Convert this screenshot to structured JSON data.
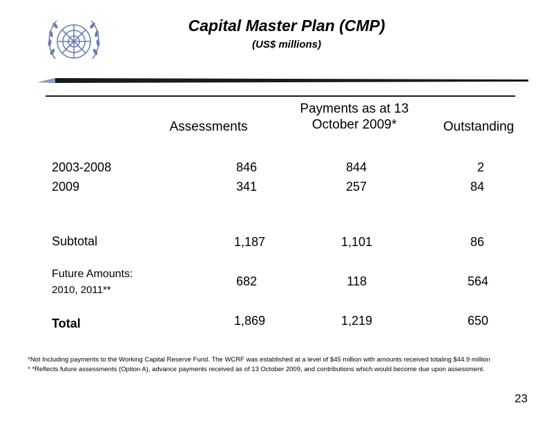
{
  "header": {
    "title": "Capital Master Plan (CMP)",
    "subtitle": "(US$ millions)"
  },
  "table": {
    "columns": [
      "Assessments",
      "Payments as at 13 October 2009*",
      "Outstanding"
    ],
    "rows": [
      {
        "label": "2003-2008",
        "assessments": "846",
        "payments": "844",
        "outstanding": "2"
      },
      {
        "label": "2009",
        "assessments": "341",
        "payments": "257",
        "outstanding": "84"
      },
      {
        "label": "Subtotal",
        "assessments": "1,187",
        "payments": "1,101",
        "outstanding": "86"
      },
      {
        "label_line1": "Future Amounts:",
        "label_line2": "2010, 2011**",
        "assessments": "682",
        "payments": "118",
        "outstanding": "564"
      },
      {
        "label": "Total",
        "assessments": "1,869",
        "payments": "1,219",
        "outstanding": "650"
      }
    ]
  },
  "footnotes": [
    "*Not Including payments to the Working Capital Reserve Fund.  The WCRF was established at a level of $45 million with amounts received  totaling $44.9 million",
    "* *Reflects future assessments (Option A), advance payments received as of 13 October 2009, and contributions which would become due upon assessment."
  ],
  "page_number": "23",
  "icons": {
    "logo": "un-emblem-icon"
  },
  "colors": {
    "rule": "#1a1a1a",
    "emblem": "#6a7fb0"
  }
}
